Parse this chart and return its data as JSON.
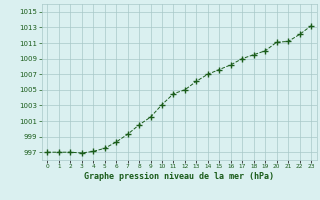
{
  "x": [
    0,
    1,
    2,
    3,
    4,
    5,
    6,
    7,
    8,
    9,
    10,
    11,
    12,
    13,
    14,
    15,
    16,
    17,
    18,
    19,
    20,
    21,
    22,
    23
  ],
  "y": [
    997.0,
    997.0,
    997.0,
    996.9,
    997.1,
    997.5,
    998.3,
    999.3,
    1000.5,
    1001.5,
    1003.1,
    1004.5,
    1005.0,
    1006.1,
    1007.0,
    1007.6,
    1008.2,
    1009.0,
    1009.5,
    1010.0,
    1011.1,
    1011.2,
    1012.1,
    1013.2
  ],
  "ylim": [
    996.0,
    1016.0
  ],
  "yticks": [
    997,
    999,
    1001,
    1003,
    1005,
    1007,
    1009,
    1011,
    1013,
    1015
  ],
  "xticks": [
    0,
    1,
    2,
    3,
    4,
    5,
    6,
    7,
    8,
    9,
    10,
    11,
    12,
    13,
    14,
    15,
    16,
    17,
    18,
    19,
    20,
    21,
    22,
    23
  ],
  "xlabel": "Graphe pression niveau de la mer (hPa)",
  "line_color": "#1a5c1a",
  "marker_color": "#1a5c1a",
  "bg_color": "#daf0f0",
  "grid_color": "#a8c8c8",
  "tick_label_color": "#1a5c1a",
  "axis_label_color": "#1a5c1a"
}
